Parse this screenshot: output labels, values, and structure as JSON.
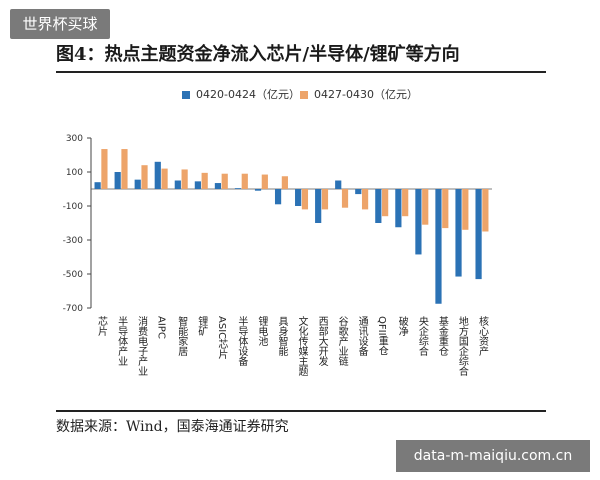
{
  "watermark_top": "世界杯买球",
  "watermark_bottom": "data-m-maiqiu.com.cn",
  "figure_title": "图4：热点主题资金净流入芯片/半导体/锂矿等方向",
  "source": "数据来源：Wind，国泰海通证券研究",
  "colors": {
    "series1": "#2b72b5",
    "series2": "#eda46a"
  },
  "chart_data": {
    "type": "bar",
    "title": "",
    "xlabel": "",
    "ylabel": "",
    "ylim": [
      -700,
      300
    ],
    "yticks": [
      300,
      100,
      -100,
      -300,
      -500,
      -700
    ],
    "grid": false,
    "legend_position": "top",
    "categories": [
      "芯片",
      "半导体产业",
      "消费电子产业",
      "AIPC",
      "智能家居",
      "锂矿",
      "ASIC芯片",
      "半导体设备",
      "锂电池",
      "具身智能",
      "文化传媒主题",
      "西部大开发",
      "谷歌产业链",
      "通讯设备",
      "QFII重仓",
      "破净",
      "央企综合",
      "基金重仓",
      "地方国企综合",
      "核心资产"
    ],
    "series": [
      {
        "name": "0420-0424（亿元）",
        "values": [
          40,
          100,
          55,
          160,
          50,
          45,
          35,
          5,
          -10,
          -90,
          -100,
          -200,
          50,
          -30,
          -200,
          -225,
          -385,
          -675,
          -515,
          -530
        ]
      },
      {
        "name": "0427-0430（亿元）",
        "values": [
          235,
          235,
          140,
          120,
          115,
          95,
          90,
          90,
          85,
          75,
          -120,
          -120,
          -110,
          -120,
          -160,
          -160,
          -210,
          -230,
          -240,
          -250
        ]
      }
    ]
  }
}
